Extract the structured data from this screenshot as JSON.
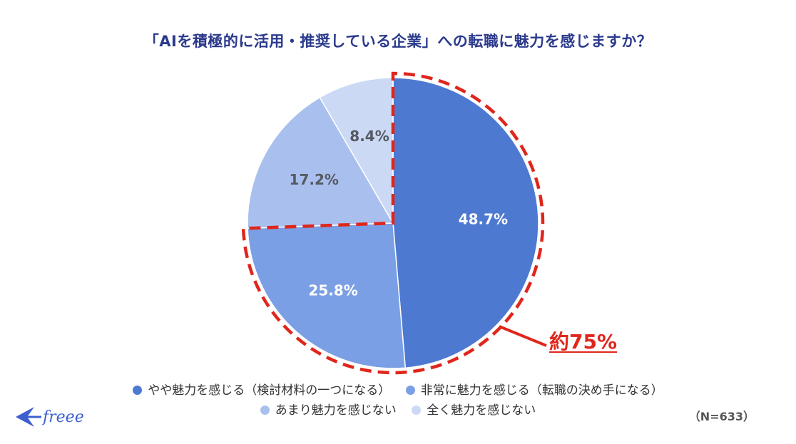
{
  "chart_data": {
    "type": "pie",
    "title": "「AIを積極的に活用・推奨している企業」への転職に魅力を感じますか？",
    "slices": [
      {
        "label": "やや魅力を感じる（検討材料の一つになる）",
        "value": 48.7,
        "display": "48.7%",
        "color": "#4e79d1"
      },
      {
        "label": "非常に魅力を感じる（転職の決め手になる）",
        "value": 25.8,
        "display": "25.8%",
        "color": "#7b9fe4"
      },
      {
        "label": "あまり魅力を感じない",
        "value": 17.2,
        "display": "17.2%",
        "color": "#a9c0ef"
      },
      {
        "label": "全く魅力を感じない",
        "value": 8.4,
        "display": "8.4%",
        "color": "#cbd9f5"
      }
    ],
    "annotation": "約75%",
    "sample_size": "（N=633）",
    "legend_position": "bottom"
  },
  "brand": {
    "logo_text": "freee"
  }
}
